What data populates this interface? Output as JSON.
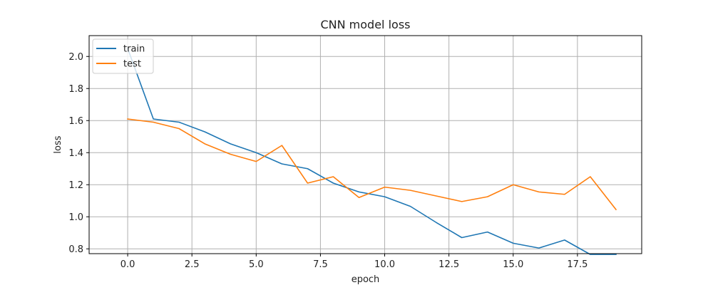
{
  "chart_data": {
    "type": "line",
    "title": "CNN model loss",
    "xlabel": "epoch",
    "ylabel": "loss",
    "x": [
      0,
      1,
      2,
      3,
      4,
      5,
      6,
      7,
      8,
      9,
      10,
      11,
      12,
      13,
      14,
      15,
      16,
      17,
      18,
      19
    ],
    "series": [
      {
        "name": "train",
        "color": "#1f77b4",
        "values": [
          2.05,
          1.61,
          1.59,
          1.53,
          1.455,
          1.4,
          1.33,
          1.3,
          1.21,
          1.155,
          1.125,
          1.065,
          0.965,
          0.87,
          0.905,
          0.835,
          0.805,
          0.855,
          0.765,
          0.765
        ]
      },
      {
        "name": "test",
        "color": "#ff7f0e",
        "values": [
          1.61,
          1.59,
          1.55,
          1.455,
          1.39,
          1.345,
          1.445,
          1.21,
          1.25,
          1.12,
          1.185,
          1.165,
          1.13,
          1.095,
          1.125,
          1.2,
          1.155,
          1.14,
          1.25,
          1.045
        ]
      }
    ],
    "xlim": [
      -1.5,
      20
    ],
    "ylim": [
      0.77,
      2.13
    ],
    "xticks": [
      0.0,
      2.5,
      5.0,
      7.5,
      10.0,
      12.5,
      15.0,
      17.5
    ],
    "xtick_labels": [
      "0.0",
      "2.5",
      "5.0",
      "7.5",
      "10.0",
      "12.5",
      "15.0",
      "17.5"
    ],
    "yticks": [
      0.8,
      1.0,
      1.2,
      1.4,
      1.6,
      1.8,
      2.0
    ],
    "ytick_labels": [
      "0.8",
      "1.0",
      "1.2",
      "1.4",
      "1.6",
      "1.8",
      "2.0"
    ],
    "grid": true,
    "legend_position": "top-left"
  }
}
